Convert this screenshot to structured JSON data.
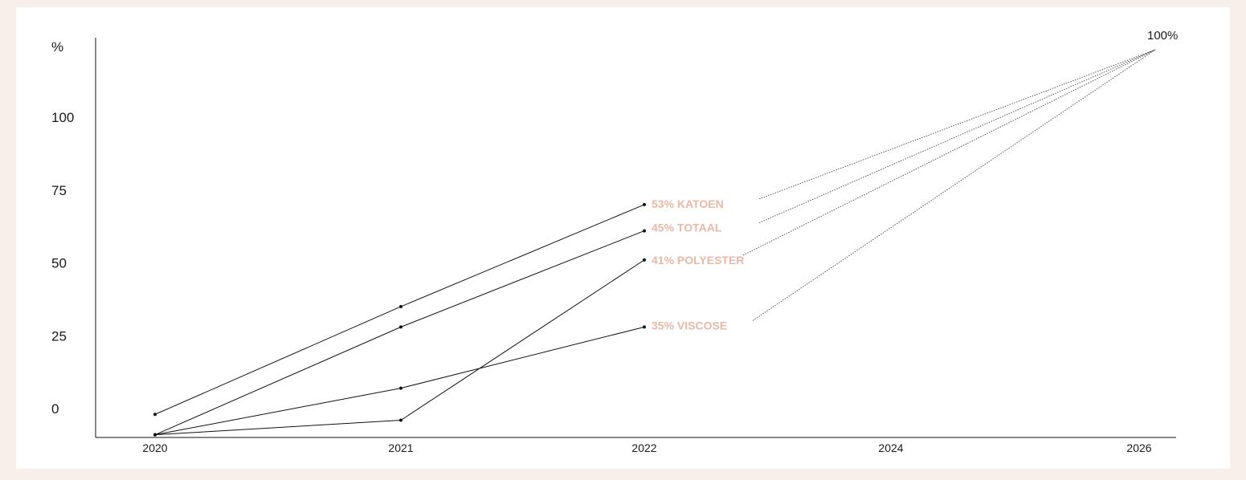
{
  "chart_data": {
    "type": "line",
    "ylabel": "%",
    "y_ticks": [
      "0",
      "25",
      "50",
      "75",
      "100"
    ],
    "x_ticks": [
      "2020",
      "2021",
      "2022",
      "2024",
      "2026"
    ],
    "target_label": "100%",
    "target": {
      "x": "2026",
      "y": 100
    },
    "series": [
      {
        "name": "53% KATOEN",
        "values": [
          -2,
          35,
          70
        ]
      },
      {
        "name": "45% TOTAAL",
        "values": [
          -9,
          28,
          61
        ]
      },
      {
        "name": "41% POLYESTER",
        "values": [
          -9,
          -4,
          51
        ]
      },
      {
        "name": "35% VISCOSE",
        "values": [
          -9,
          7,
          28
        ]
      }
    ],
    "colors": {
      "line": "#111111",
      "projection": "#333333",
      "label": "#e8b9a8",
      "background": "#f8efeb"
    }
  }
}
